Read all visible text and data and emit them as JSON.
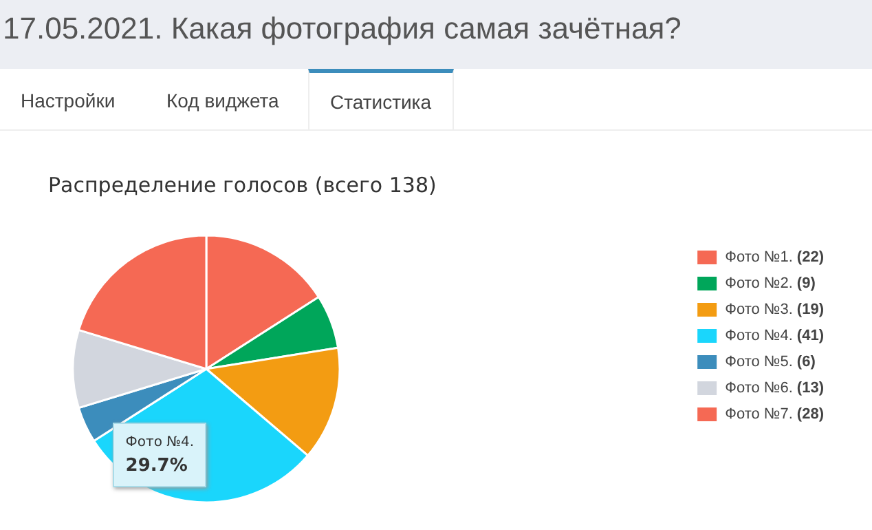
{
  "chart_data": {
    "type": "pie",
    "title": "17.05.2021. Какая фотография самая зачётная?",
    "subtitle": "Распределение голосов (всего 138)",
    "categories": [
      "Фото №1.",
      "Фото №2.",
      "Фото №3.",
      "Фото №4.",
      "Фото №5.",
      "Фото №6.",
      "Фото №7."
    ],
    "values": [
      22,
      9,
      19,
      41,
      6,
      13,
      28
    ],
    "colors": [
      "#f56954",
      "#00a65a",
      "#f39c12",
      "#1ad6fc",
      "#3c8dbc",
      "#d2d6de",
      "#f56954"
    ],
    "value_labels": [
      "(22)",
      "(9)",
      "(19)",
      "(41)",
      "(6)",
      "(13)",
      "(28)"
    ],
    "legend": "right",
    "annotations": [
      "Настройки",
      "Код виджета",
      "Статистика",
      {
        "text": "Фото №4.\n29.7%",
        "x": "Фото №4."
      }
    ]
  }
}
